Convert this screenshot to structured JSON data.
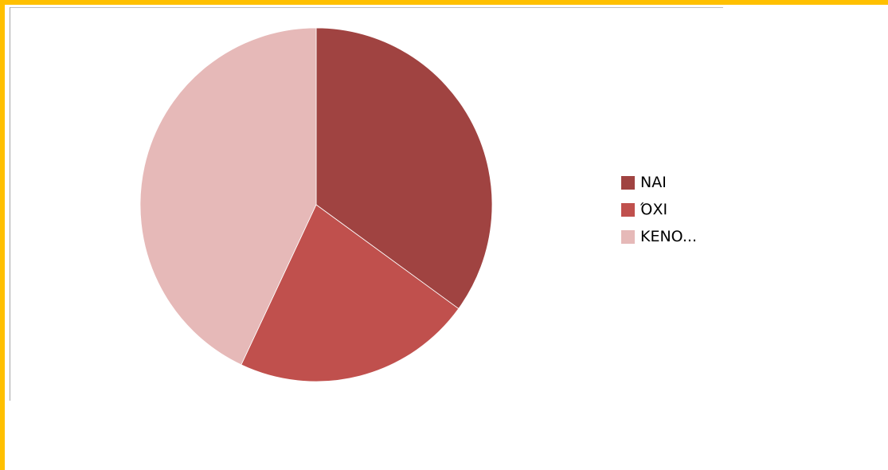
{
  "chart_data": {
    "type": "pie",
    "title": "",
    "categories": [
      "NAI",
      "ΌΧΙ",
      "KENO..."
    ],
    "values": [
      35,
      22,
      43
    ],
    "colors": [
      "#a04341",
      "#c0504d",
      "#e6b9b8"
    ],
    "start_angle_deg": 0,
    "direction": "clockwise",
    "legend_position": "right"
  }
}
